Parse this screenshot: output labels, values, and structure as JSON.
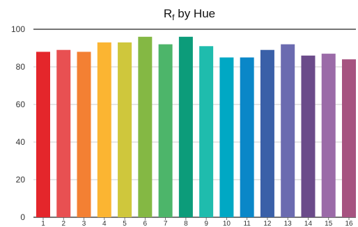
{
  "chart_data": {
    "type": "bar",
    "title": {
      "main": "R",
      "subscript": "f",
      "rest": " by Hue"
    },
    "xlabel": "",
    "ylabel": "",
    "categories": [
      "1",
      "2",
      "3",
      "4",
      "5",
      "6",
      "7",
      "8",
      "9",
      "10",
      "11",
      "12",
      "13",
      "14",
      "15",
      "16"
    ],
    "values": [
      88,
      89,
      88,
      93,
      93,
      96,
      92,
      96,
      91,
      85,
      85,
      89,
      92,
      86,
      87,
      84
    ],
    "colors": [
      "#e4262b",
      "#e85052",
      "#f38033",
      "#fbb532",
      "#cfc73c",
      "#84b844",
      "#4db56a",
      "#0c9c7a",
      "#1fbcad",
      "#00a8c4",
      "#0a87c8",
      "#3a60a8",
      "#6b6bb0",
      "#6b4b8a",
      "#9b6ba8",
      "#a65380"
    ],
    "ylim": [
      0,
      100
    ],
    "yticks": [
      0,
      20,
      40,
      60,
      80,
      100
    ],
    "grid": {
      "horizontal": true,
      "vertical": false
    },
    "legend": "none"
  }
}
